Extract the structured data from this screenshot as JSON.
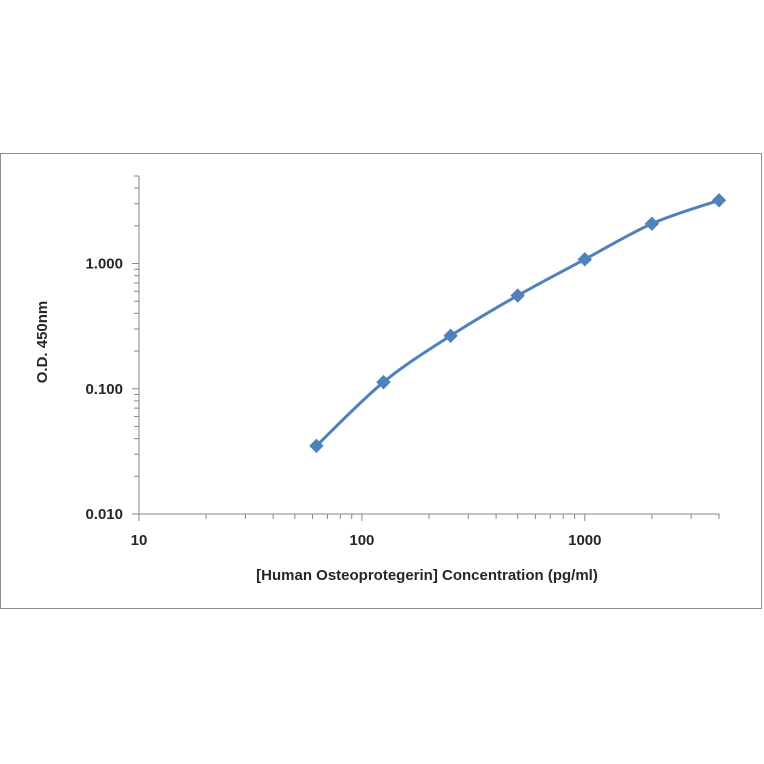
{
  "chart_data": {
    "type": "line",
    "title": "",
    "xlabel": "[Human Osteoprotegerin] Concentration (pg/ml)",
    "ylabel": "O.D. 450nm",
    "x_scale": "log",
    "y_scale": "log",
    "xlim": [
      10,
      4000
    ],
    "ylim": [
      0.01,
      5
    ],
    "x_ticks": [
      {
        "value": 10,
        "label": "10"
      },
      {
        "value": 100,
        "label": "100"
      },
      {
        "value": 1000,
        "label": "1000"
      }
    ],
    "y_ticks": [
      {
        "value": 0.01,
        "label": "0.010"
      },
      {
        "value": 0.1,
        "label": "0.100"
      },
      {
        "value": 1,
        "label": "1.000"
      }
    ],
    "grid": false,
    "legend": "none",
    "series": [
      {
        "color": "#4f81bd",
        "marker": "diamond",
        "x": [
          62.5,
          125,
          250,
          500,
          1000,
          2000,
          4000
        ],
        "y": [
          0.035,
          0.113,
          0.265,
          0.555,
          1.08,
          2.08,
          3.2
        ]
      }
    ]
  }
}
